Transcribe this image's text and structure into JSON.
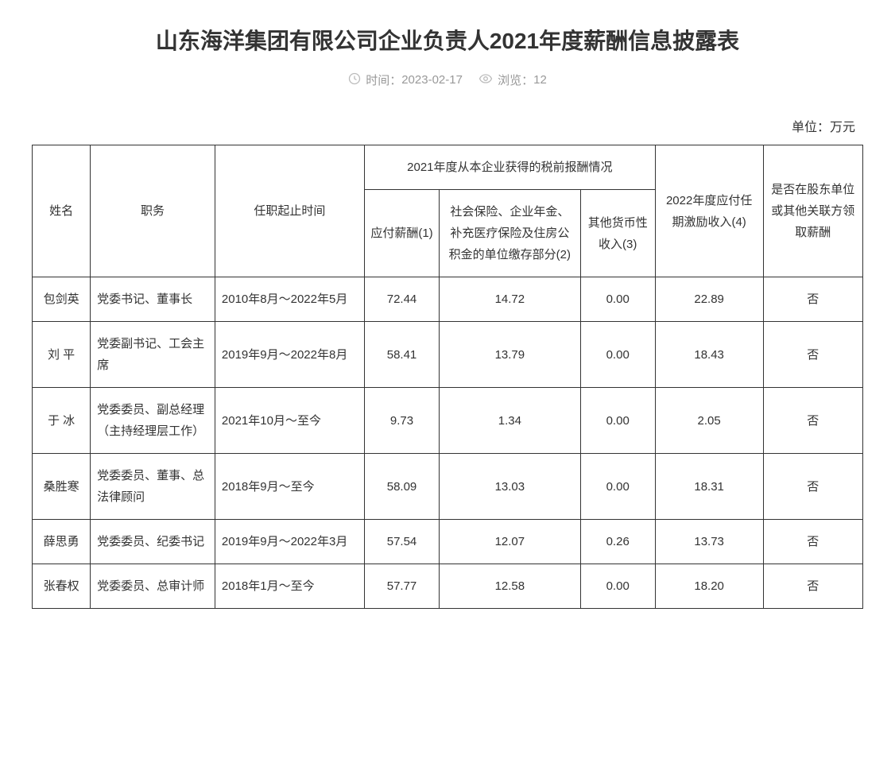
{
  "title": "山东海洋集团有限公司企业负责人2021年度薪酬信息披露表",
  "meta": {
    "time_label": "时间：",
    "time_value": "2023-02-17",
    "views_label": "浏览：",
    "views_value": "12"
  },
  "unit_label": "单位：万元",
  "headers": {
    "name": "姓名",
    "position": "职务",
    "term": "任职起止时间",
    "pretax_group": "2021年度从本企业获得的税前报酬情况",
    "pay1": "应付薪酬(1)",
    "pay2": "社会保险、企业年金、补充医疗保险及住房公积金的单位缴存部分(2)",
    "pay3": "其他货币性收入(3)",
    "incentive": "2022年度应付任期激励收入(4)",
    "shareholder": "是否在股东单位或其他关联方领取薪酬"
  },
  "rows": [
    {
      "name": "包剑英",
      "position": "党委书记、董事长",
      "term": "2010年8月～2022年5月",
      "pay1": "72.44",
      "pay2": "14.72",
      "pay3": "0.00",
      "incentive": "22.89",
      "shareholder": "否"
    },
    {
      "name": "刘  平",
      "position": "党委副书记、工会主席",
      "term": "2019年9月～2022年8月",
      "pay1": "58.41",
      "pay2": "13.79",
      "pay3": "0.00",
      "incentive": "18.43",
      "shareholder": "否"
    },
    {
      "name": "于  冰",
      "position": "党委委员、副总经理（主持经理层工作）",
      "term": "2021年10月～至今",
      "pay1": "9.73",
      "pay2": "1.34",
      "pay3": "0.00",
      "incentive": "2.05",
      "shareholder": "否"
    },
    {
      "name": "桑胜寒",
      "position": "党委委员、董事、总法律顾问",
      "term": "2018年9月～至今",
      "pay1": "58.09",
      "pay2": "13.03",
      "pay3": "0.00",
      "incentive": "18.31",
      "shareholder": "否"
    },
    {
      "name": "薛思勇",
      "position": "党委委员、纪委书记",
      "term": "2019年9月～2022年3月",
      "pay1": "57.54",
      "pay2": "12.07",
      "pay3": "0.26",
      "incentive": "13.73",
      "shareholder": "否"
    },
    {
      "name": "张春权",
      "position": "党委委员、总审计师",
      "term": "2018年1月～至今",
      "pay1": "57.77",
      "pay2": "12.58",
      "pay3": "0.00",
      "incentive": "18.20",
      "shareholder": "否"
    }
  ]
}
